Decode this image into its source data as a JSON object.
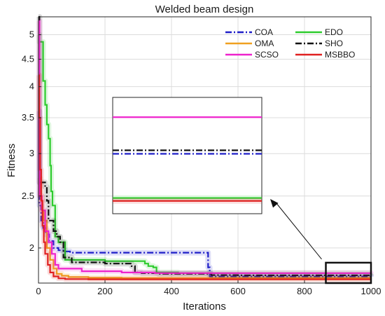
{
  "chart_data": {
    "type": "line",
    "title": "Welded beam design",
    "xlabel": "Iterations",
    "ylabel": "Fitness",
    "xlim": [
      0,
      1000
    ],
    "ylim": [
      1.72,
      5.4
    ],
    "yscale": "log",
    "grid": true,
    "legend_position": "top-right",
    "x_ticks": [
      0,
      200,
      400,
      600,
      800,
      1000
    ],
    "y_ticks": [
      2,
      2.5,
      3,
      3.5,
      4,
      4.5,
      5
    ],
    "series": [
      {
        "name": "COA",
        "color": "#1f1fc8",
        "dash": "dashdot",
        "points": [
          [
            0,
            3.6
          ],
          [
            3,
            2.4
          ],
          [
            8,
            2.25
          ],
          [
            14,
            2.18
          ],
          [
            22,
            2.12
          ],
          [
            32,
            2.06
          ],
          [
            45,
            2.0
          ],
          [
            60,
            1.98
          ],
          [
            80,
            1.97
          ],
          [
            95,
            1.96
          ],
          [
            300,
            1.96
          ],
          [
            505,
            1.96
          ],
          [
            510,
            1.84
          ],
          [
            515,
            1.77
          ],
          [
            600,
            1.77
          ],
          [
            1000,
            1.767
          ]
        ]
      },
      {
        "name": "EDO",
        "color": "#2ecc2e",
        "dash": "solid",
        "points": [
          [
            0,
            5.0
          ],
          [
            3,
            4.85
          ],
          [
            12,
            4.85
          ],
          [
            14,
            4.1
          ],
          [
            20,
            3.7
          ],
          [
            25,
            3.4
          ],
          [
            30,
            3.2
          ],
          [
            35,
            2.85
          ],
          [
            38,
            2.55
          ],
          [
            42,
            2.4
          ],
          [
            50,
            2.1
          ],
          [
            60,
            2.05
          ],
          [
            80,
            1.9
          ],
          [
            200,
            1.89
          ],
          [
            320,
            1.87
          ],
          [
            330,
            1.85
          ],
          [
            345,
            1.84
          ],
          [
            355,
            1.8
          ],
          [
            420,
            1.795
          ],
          [
            1000,
            1.795
          ]
        ]
      },
      {
        "name": "OMA",
        "color": "#f0a020",
        "dash": "solid",
        "points": [
          [
            0,
            2.7
          ],
          [
            5,
            2.5
          ],
          [
            10,
            2.35
          ],
          [
            15,
            2.25
          ],
          [
            25,
            2.0
          ],
          [
            35,
            1.9
          ],
          [
            45,
            1.83
          ],
          [
            55,
            1.79
          ],
          [
            70,
            1.775
          ],
          [
            90,
            1.765
          ],
          [
            150,
            1.76
          ],
          [
            250,
            1.757
          ],
          [
            1000,
            1.757
          ]
        ]
      },
      {
        "name": "SHO",
        "color": "#111111",
        "dash": "dashdot",
        "points": [
          [
            0,
            5.4
          ],
          [
            3,
            2.65
          ],
          [
            20,
            2.6
          ],
          [
            25,
            2.45
          ],
          [
            30,
            2.25
          ],
          [
            45,
            2.15
          ],
          [
            55,
            2.1
          ],
          [
            65,
            2.05
          ],
          [
            75,
            1.92
          ],
          [
            100,
            1.88
          ],
          [
            200,
            1.87
          ],
          [
            280,
            1.85
          ],
          [
            290,
            1.8
          ],
          [
            310,
            1.795
          ],
          [
            360,
            1.79
          ],
          [
            500,
            1.79
          ],
          [
            520,
            1.78
          ],
          [
            600,
            1.778
          ],
          [
            1000,
            1.776
          ]
        ]
      },
      {
        "name": "SCSO",
        "color": "#ee22cc",
        "dash": "solid",
        "points": [
          [
            0,
            5.3
          ],
          [
            3,
            2.5
          ],
          [
            10,
            2.35
          ],
          [
            20,
            2.15
          ],
          [
            30,
            2.05
          ],
          [
            40,
            1.95
          ],
          [
            50,
            1.86
          ],
          [
            60,
            1.83
          ],
          [
            100,
            1.83
          ],
          [
            130,
            1.81
          ],
          [
            250,
            1.8
          ],
          [
            350,
            1.795
          ],
          [
            1000,
            1.793
          ]
        ]
      },
      {
        "name": "MSBBO",
        "color": "#e02020",
        "dash": "solid",
        "points": [
          [
            0,
            4.2
          ],
          [
            2,
            3.5
          ],
          [
            5,
            2.8
          ],
          [
            8,
            2.45
          ],
          [
            12,
            2.2
          ],
          [
            16,
            2.05
          ],
          [
            20,
            1.95
          ],
          [
            28,
            1.86
          ],
          [
            35,
            1.8
          ],
          [
            45,
            1.77
          ],
          [
            60,
            1.755
          ],
          [
            80,
            1.75
          ],
          [
            150,
            1.748
          ],
          [
            1000,
            1.748
          ]
        ]
      }
    ],
    "inset": {
      "source_xlim": [
        900,
        1000
      ],
      "source_ylim": [
        1.74,
        1.8
      ],
      "lines": [
        {
          "series": "SCSO",
          "value": 0.83
        },
        {
          "series": "SHO",
          "value": 0.545
        },
        {
          "series": "COA",
          "value": 0.515
        },
        {
          "series": "EDO",
          "value": 0.135
        },
        {
          "series": "MSBBO",
          "value": 0.11
        }
      ]
    }
  }
}
